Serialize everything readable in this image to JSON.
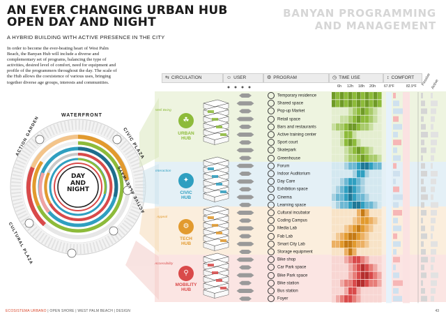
{
  "header": {
    "title_line1": "AN EVER CHANGING URBAN HUB",
    "title_line2": "OPEN DAY AND NIGHT",
    "subtitle": "A HYBRID BUILDING WITH ACTIVE PRESENCE IN THE CITY",
    "right_title_line1": "BANYAN PROGRAMMING",
    "right_title_line2": "AND MANAGEMENT"
  },
  "intro": "In order to become the ever-beating heart of West Palm Beach, the Banyan Hub will include a diverse and complementary set of programs, balancing the type of activities, desired level of comfort, need for equipment and profile of the programmers throughout the day. The scale of the Hub allows the coexistence of various uses, bringing together diverse age groups, interests and communities.",
  "ring": {
    "center_line1": "DAY",
    "center_line2": "AND",
    "center_line3": "NIGHT",
    "waterfront": "WATERFRONT",
    "action_garden": "ACTION GARDEN",
    "civic_plaza": "CIVIC PLAZA",
    "cultural_plaza": "CULTURAL PLAZA",
    "active_alleyways": "ACTIVE ALLEYWAYS"
  },
  "columns": {
    "circulation": "CIRCULATION",
    "user": "USER",
    "program": "PROGRAM",
    "time_use": "TIME USE",
    "comfort": "COMFORT",
    "passive": "Passive",
    "active": "Active",
    "ticks": [
      "6h",
      "12h",
      "18h",
      "20h"
    ],
    "temp_low": "67.8°F",
    "temp_high": "82.9°F"
  },
  "hubs": [
    {
      "tag": "Well Being",
      "name1": "URBAN",
      "name2": "HUB",
      "color": "#8dbb3a"
    },
    {
      "tag": "Interaction",
      "name1": "CIVIC",
      "name2": "HUB",
      "color": "#2f9fc0"
    },
    {
      "tag": "Appeal",
      "name1": "TECH",
      "name2": "HUB",
      "color": "#e29a2e"
    },
    {
      "tag": "Accessibility",
      "name1": "MOBILITY",
      "name2": "HUB",
      "color": "#d94a4a"
    }
  ],
  "programs": [
    "Temporary residence",
    "Shared space",
    "Pop-up Market",
    "Retail space",
    "Bars and restaurants",
    "Active training center",
    "Sport court",
    "Skatepark",
    "Greenhouse",
    "Forum",
    "Indoor Auditorium",
    "Day Care",
    "Exhibition space",
    "Cinema",
    "Learning space",
    "Cultural incubator",
    "Coding Campus",
    "Media Lab",
    "Fab Lab",
    "Smart City Lab",
    "Storage equipment",
    "Bike shop",
    "Car Park space",
    "Bike Park space",
    "Bike station",
    "Bus station",
    "Foyer"
  ],
  "footer": {
    "brand": "ECOSISTEMA URBANO",
    "rest": " | OPEN SHORE | WEST PALM BEACH | DESIGN",
    "page": "43"
  },
  "colors": {
    "urban": "#8dbb3a",
    "civic": "#2f9fc0",
    "tech": "#e29a2e",
    "mobility": "#d94a4a",
    "accent": "#d9472b"
  }
}
